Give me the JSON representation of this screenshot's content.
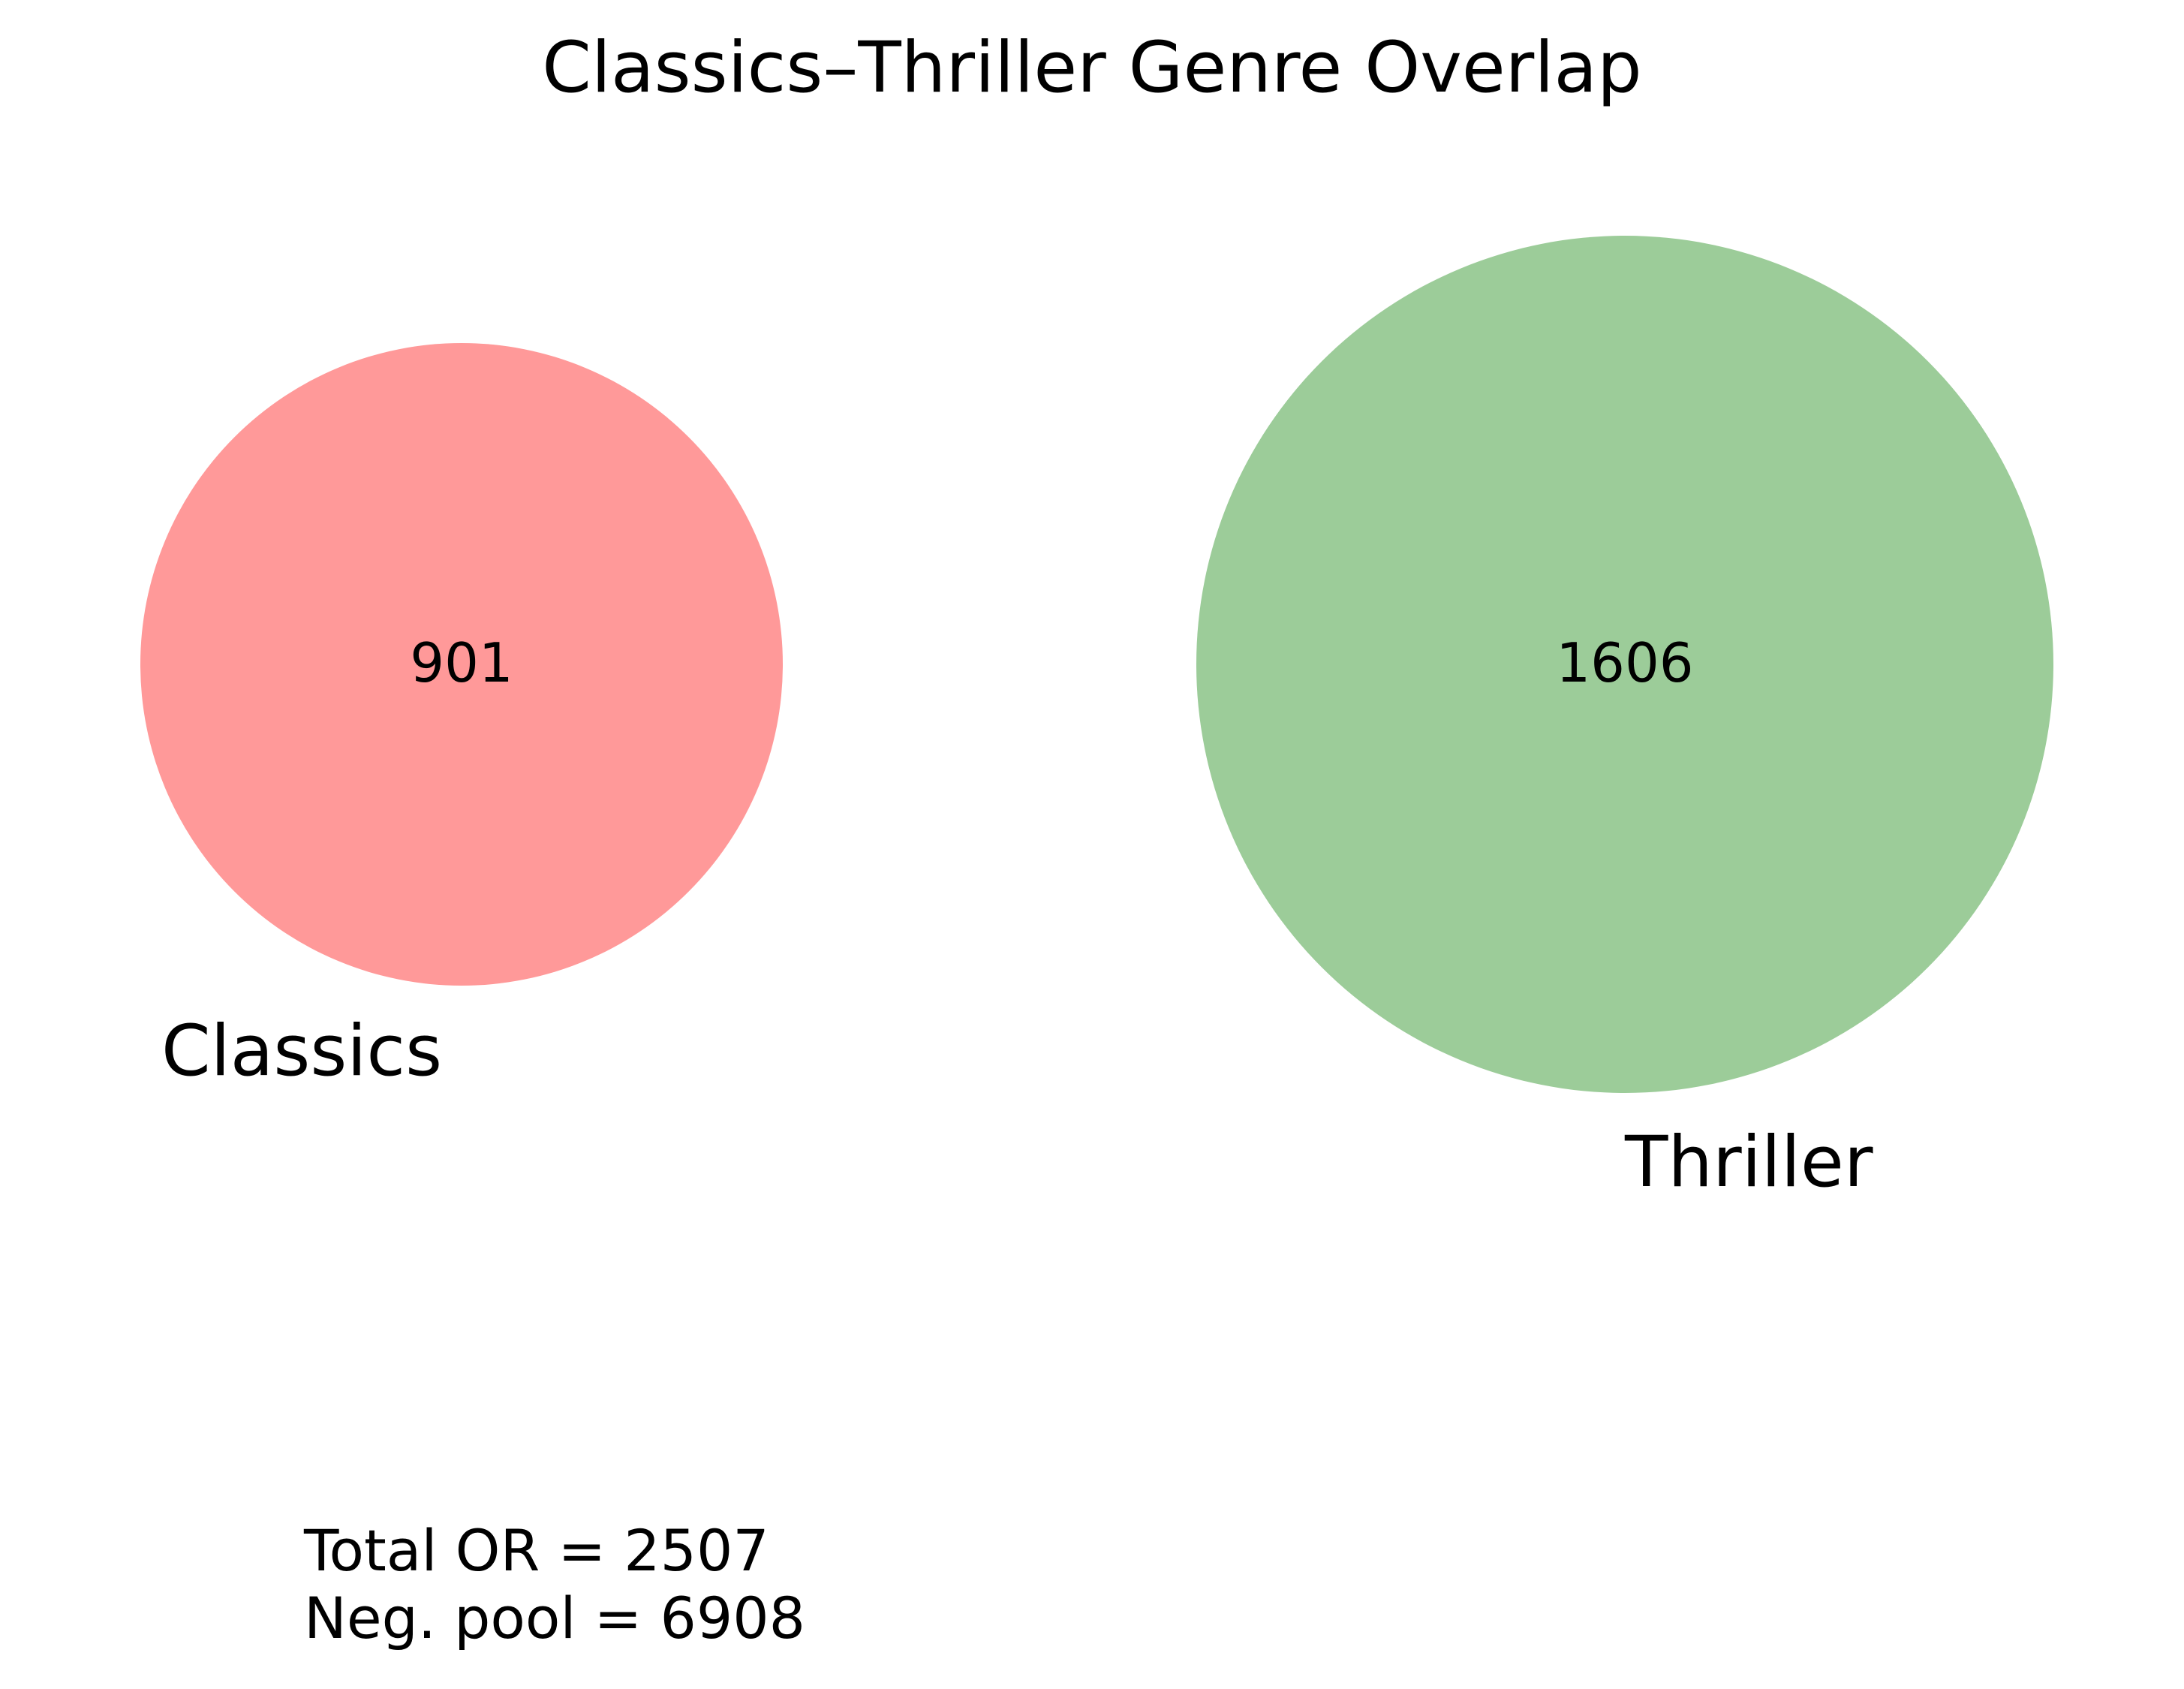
{
  "title": "Classics–Thriller Genre Overlap",
  "sets": [
    {
      "label": "Classics",
      "count": "901",
      "size": 901,
      "color": "#ff9999"
    },
    {
      "label": "Thriller",
      "count": "1606",
      "size": 1606,
      "color": "#9ccc99"
    }
  ],
  "overlap": 0,
  "footer": {
    "line1": "Total OR = 2507",
    "line2": "Neg. pool = 6908"
  }
}
